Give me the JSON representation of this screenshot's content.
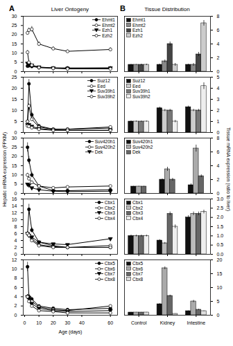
{
  "chart_data": [
    {
      "type": "line",
      "title": "Liver Ontogeny",
      "annotations": [
        "A"
      ],
      "x": [
        2,
        3,
        5,
        10,
        20,
        30,
        60
      ],
      "xlim": [
        -1,
        65
      ],
      "xticks": [
        0,
        10,
        20,
        30,
        40,
        60
      ],
      "ylim": [
        0,
        30
      ],
      "yticks": [
        0,
        5,
        10,
        15,
        20,
        25,
        30
      ],
      "legend": "upper right",
      "tick_labels": "y",
      "series": [
        {
          "name": "Ehmt1",
          "color": "#000000",
          "marker": "filled_circle",
          "values": [
            3.0,
            3.2,
            2.8,
            2.2,
            2.0,
            2.0,
            2.0
          ],
          "errors": [
            0.3,
            0.3,
            0.3,
            0.2,
            0.2,
            0.2,
            0.2
          ]
        },
        {
          "name": "Ehmt2",
          "color": "#000000",
          "marker": "open_circle",
          "values": [
            21.0,
            22.5,
            23.0,
            15.0,
            12.5,
            11.0,
            12.0
          ],
          "errors": [
            1.0,
            1.2,
            1.5,
            1.2,
            1.0,
            0.8,
            1.0
          ]
        },
        {
          "name": "Ezh1",
          "color": "#000000",
          "marker": "filled_triangle_down",
          "values": [
            4.5,
            4.0,
            3.5,
            2.5,
            2.0,
            1.8,
            2.0
          ],
          "errors": [
            0.5,
            0.4,
            0.3,
            0.2,
            0.2,
            0.2,
            0.2
          ]
        },
        {
          "name": "Ezh2",
          "color": "#000000",
          "marker": "open_circle",
          "values": [
            10.5,
            5.0,
            3.5,
            2.2,
            1.8,
            1.5,
            1.5
          ],
          "errors": [
            1.0,
            0.5,
            0.4,
            0.2,
            0.2,
            0.2,
            0.2
          ]
        }
      ]
    },
    {
      "type": "bar",
      "title": "Tissue Distribution",
      "annotations": [
        "B"
      ],
      "categories": [
        "Control",
        "Kidney",
        "Intestine"
      ],
      "ylim": [
        0,
        8
      ],
      "yticks": [
        0,
        2,
        4,
        6,
        8
      ],
      "legend": "upper left",
      "tick_labels": "y",
      "series": [
        {
          "name": "Ehmt1",
          "color": "#111111",
          "values": [
            1.0,
            1.0,
            1.0
          ],
          "errors": [
            0.05,
            0.1,
            0.1
          ]
        },
        {
          "name": "Ehmt2",
          "color": "#888888",
          "values": [
            1.0,
            1.5,
            1.0
          ],
          "errors": [
            0.05,
            0.2,
            0.2
          ]
        },
        {
          "name": "Ezh1",
          "color": "#444444",
          "values": [
            1.0,
            4.0,
            2.5
          ],
          "errors": [
            0.1,
            0.3,
            0.3
          ]
        },
        {
          "name": "Ezh2",
          "color": "#cccccc",
          "values": [
            1.0,
            1.0,
            7.0
          ],
          "errors": [
            0.1,
            0.2,
            0.4
          ]
        }
      ]
    },
    {
      "type": "line",
      "x": [
        2,
        3,
        5,
        10,
        20,
        30,
        60
      ],
      "xlim": [
        -1,
        65
      ],
      "xticks": [
        0,
        10,
        20,
        30,
        40,
        60
      ],
      "ylim": [
        0,
        25
      ],
      "yticks": [
        0,
        5,
        10,
        15,
        20,
        25
      ],
      "legend": "upper right",
      "tick_labels": "y",
      "series": [
        {
          "name": "Suz12",
          "color": "#000000",
          "marker": "filled_circle",
          "values": [
            5.0,
            22.0,
            8.0,
            3.0,
            1.5,
            1.5,
            2.0
          ],
          "errors": [
            0.5,
            2.0,
            1.0,
            0.3,
            0.2,
            0.2,
            0.2
          ]
        },
        {
          "name": "Eed",
          "color": "#000000",
          "marker": "open_circle",
          "values": [
            5.0,
            12.0,
            6.0,
            2.5,
            1.5,
            1.5,
            2.5
          ],
          "errors": [
            0.5,
            1.0,
            0.8,
            0.3,
            0.2,
            0.2,
            0.2
          ]
        },
        {
          "name": "Suv39h1",
          "color": "#000000",
          "marker": "filled_triangle_down",
          "values": [
            3.5,
            3.5,
            2.8,
            1.8,
            1.2,
            1.0,
            1.0
          ],
          "errors": [
            0.3,
            0.4,
            0.3,
            0.2,
            0.1,
            0.1,
            0.1
          ]
        },
        {
          "name": "Suv39h2",
          "color": "#000000",
          "marker": "open_circle",
          "values": [
            3.0,
            2.8,
            2.2,
            1.5,
            1.0,
            1.0,
            1.0
          ],
          "errors": [
            0.3,
            0.3,
            0.2,
            0.2,
            0.1,
            0.1,
            0.1
          ]
        }
      ]
    },
    {
      "type": "bar",
      "categories": [
        "Control",
        "Kidney",
        "Intestine"
      ],
      "ylim": [
        0,
        5
      ],
      "yticks": [
        0,
        1,
        2,
        3,
        4,
        5
      ],
      "legend": "upper left",
      "tick_labels": "y",
      "series": [
        {
          "name": "Suz12",
          "color": "#111111",
          "values": [
            1.0,
            2.2,
            2.3
          ],
          "errors": [
            0.05,
            0.1,
            0.1
          ]
        },
        {
          "name": "Eed",
          "color": "#cccccc",
          "values": [
            1.0,
            2.0,
            2.0
          ],
          "errors": [
            0.05,
            0.1,
            0.1
          ]
        },
        {
          "name": "Suv39h1",
          "color": "#777777",
          "values": [
            1.0,
            2.0,
            2.0
          ],
          "errors": [
            0.05,
            0.1,
            0.1
          ]
        },
        {
          "name": "Suv39h2",
          "color": "#eeeeee",
          "values": [
            1.0,
            1.0,
            4.2
          ],
          "errors": [
            0.05,
            0.1,
            0.3
          ]
        }
      ]
    },
    {
      "type": "line",
      "y_label": "Hepatic mRNA expression (FPKM)",
      "x": [
        2,
        3,
        5,
        10,
        20,
        30,
        60
      ],
      "xlim": [
        -1,
        65
      ],
      "xticks": [
        0,
        10,
        20,
        30,
        40,
        60
      ],
      "ylim": [
        0,
        30
      ],
      "yticks": [
        0,
        5,
        10,
        15,
        20,
        25,
        30
      ],
      "legend": "upper right",
      "tick_labels": "y",
      "series": [
        {
          "name": "Suv420h1",
          "color": "#000000",
          "marker": "filled_circle",
          "values": [
            25.0,
            18.0,
            10.0,
            4.0,
            1.5,
            1.5,
            2.0
          ],
          "errors": [
            2.5,
            2.0,
            1.5,
            0.5,
            0.2,
            0.2,
            0.2
          ]
        },
        {
          "name": "Suv420h2",
          "color": "#000000",
          "marker": "open_circle",
          "values": [
            10.0,
            8.0,
            6.0,
            4.0,
            3.0,
            3.5,
            4.0
          ],
          "errors": [
            1.0,
            1.0,
            0.8,
            0.4,
            0.2,
            0.3,
            0.3
          ]
        },
        {
          "name": "Dek",
          "color": "#000000",
          "marker": "filled_triangle_down",
          "values": [
            5.0,
            4.5,
            3.0,
            2.0,
            1.2,
            1.0,
            1.2
          ],
          "errors": [
            0.5,
            0.4,
            0.3,
            0.2,
            0.1,
            0.1,
            0.1
          ]
        }
      ]
    },
    {
      "type": "bar",
      "y_label": "Tissue mRNA expression (ratio to liver)",
      "categories": [
        "Control",
        "Kidney",
        "Intestine"
      ],
      "ylim": [
        0,
        8
      ],
      "yticks": [
        0,
        2,
        4,
        6,
        8
      ],
      "legend": "upper left",
      "tick_labels": "y",
      "series": [
        {
          "name": "Suv420h1",
          "color": "#111111",
          "values": [
            1.0,
            2.0,
            1.2
          ],
          "errors": [
            0.05,
            0.1,
            0.2
          ]
        },
        {
          "name": "Suv420h2",
          "color": "#aaaaaa",
          "values": [
            1.0,
            3.5,
            6.5
          ],
          "errors": [
            0.05,
            0.3,
            0.5
          ]
        },
        {
          "name": "Dek",
          "color": "#666666",
          "values": [
            1.0,
            2.0,
            2.5
          ],
          "errors": [
            0.05,
            0.2,
            0.2
          ]
        }
      ]
    },
    {
      "type": "line",
      "x": [
        2,
        3,
        5,
        10,
        20,
        30,
        60
      ],
      "xlim": [
        -1,
        65
      ],
      "xticks": [
        0,
        10,
        20,
        30,
        40,
        60
      ],
      "ylim": [
        0,
        16
      ],
      "yticks": [
        0,
        2,
        4,
        6,
        8,
        10,
        12,
        14,
        16
      ],
      "legend": "upper right",
      "tick_labels": "y",
      "series": [
        {
          "name": "Cbx1",
          "color": "#000000",
          "marker": "filled_circle",
          "values": [
            6.0,
            13.0,
            7.0,
            3.5,
            2.5,
            2.0,
            2.0
          ],
          "errors": [
            0.5,
            1.5,
            0.8,
            0.4,
            0.3,
            0.2,
            0.2
          ]
        },
        {
          "name": "Cbx2",
          "color": "#000000",
          "marker": "open_circle",
          "values": [
            6.0,
            5.5,
            4.5,
            2.8,
            2.2,
            2.0,
            2.5
          ],
          "errors": [
            0.5,
            0.5,
            0.4,
            0.3,
            0.2,
            0.2,
            0.2
          ]
        },
        {
          "name": "Cbx3",
          "color": "#000000",
          "marker": "filled_triangle_down",
          "values": [
            6.0,
            5.5,
            5.0,
            3.5,
            3.0,
            2.8,
            4.5
          ],
          "errors": [
            0.5,
            0.5,
            0.4,
            0.3,
            0.2,
            0.2,
            0.3
          ]
        },
        {
          "name": "Cbx4",
          "color": "#000000",
          "marker": "open_circle",
          "values": [
            6.0,
            5.5,
            4.0,
            2.5,
            2.0,
            2.0,
            2.0
          ],
          "errors": [
            0.5,
            0.5,
            0.4,
            0.3,
            0.2,
            0.2,
            0.2
          ]
        }
      ]
    },
    {
      "type": "bar",
      "categories": [
        "Control",
        "Kidney",
        "Intestine"
      ],
      "ylim": [
        0,
        3.0
      ],
      "yticks": [
        {
          "value": 0.0,
          "label": "0.0"
        },
        0.5,
        {
          "value": 1.0,
          "label": "1.0"
        },
        1.5,
        {
          "value": 2.0,
          "label": "2.0"
        },
        2.5,
        {
          "value": 3.0,
          "label": "3.0"
        }
      ],
      "legend": "upper left",
      "tick_labels": "y",
      "series": [
        {
          "name": "Cbx1",
          "color": "#111111",
          "values": [
            1.0,
            0.75,
            2.0
          ],
          "errors": [
            0.05,
            0.05,
            0.1
          ]
        },
        {
          "name": "Cbx2",
          "color": "#bbbbbb",
          "values": [
            1.0,
            0.6,
            2.2
          ],
          "errors": [
            0.05,
            0.05,
            0.1
          ]
        },
        {
          "name": "Cbx3",
          "color": "#666666",
          "values": [
            1.0,
            2.2,
            2.2
          ],
          "errors": [
            0.05,
            0.1,
            0.1
          ]
        },
        {
          "name": "Cbx4",
          "color": "#eeeeee",
          "values": [
            1.0,
            1.5,
            2.3
          ],
          "errors": [
            0.05,
            0.1,
            0.1
          ]
        }
      ]
    },
    {
      "type": "line",
      "x_label": "Age (days)",
      "x": [
        2,
        3,
        5,
        10,
        20,
        30,
        60
      ],
      "xlim": [
        -1,
        65
      ],
      "xticks": [
        0,
        10,
        20,
        30,
        40,
        60
      ],
      "ylim": [
        0,
        12
      ],
      "yticks": [
        0,
        2,
        4,
        6,
        8,
        10,
        12
      ],
      "legend": "upper right",
      "series": [
        {
          "name": "Cbx5",
          "color": "#000000",
          "marker": "filled_circle",
          "values": [
            10.5,
            4.0,
            3.5,
            2.0,
            1.5,
            1.2,
            1.5
          ],
          "errors": [
            1.0,
            0.5,
            0.4,
            0.2,
            0.2,
            0.2,
            0.2
          ]
        },
        {
          "name": "Cbx6",
          "color": "#000000",
          "marker": "open_circle",
          "values": [
            4.0,
            4.0,
            3.0,
            1.8,
            1.2,
            1.0,
            2.0
          ],
          "errors": [
            0.5,
            0.5,
            0.3,
            0.2,
            0.1,
            0.1,
            0.2
          ]
        },
        {
          "name": "Cbx7",
          "color": "#000000",
          "marker": "filled_triangle_down",
          "values": [
            4.0,
            3.8,
            2.5,
            1.5,
            1.0,
            0.8,
            1.0
          ],
          "errors": [
            0.5,
            0.4,
            0.3,
            0.2,
            0.1,
            0.1,
            0.1
          ]
        },
        {
          "name": "Cbx8",
          "color": "#000000",
          "marker": "open_circle",
          "values": [
            4.0,
            3.0,
            2.0,
            1.0,
            0.8,
            0.5,
            0.5
          ],
          "errors": [
            0.4,
            0.3,
            0.2,
            0.1,
            0.1,
            0.05,
            0.05
          ]
        }
      ]
    },
    {
      "type": "bar",
      "categories": [
        "Control",
        "Kidney",
        "Intestine"
      ],
      "ylim": [
        0,
        20
      ],
      "yticks": [
        0,
        5,
        10,
        15,
        20
      ],
      "legend": "upper left",
      "series": [
        {
          "name": "Cbx5",
          "color": "#111111",
          "values": [
            1.0,
            4.0,
            1.5
          ],
          "errors": [
            0.05,
            0.2,
            0.1
          ]
        },
        {
          "name": "Cbx6",
          "color": "#aaaaaa",
          "values": [
            1.0,
            17.0,
            5.0
          ],
          "errors": [
            0.05,
            0.5,
            0.4
          ]
        },
        {
          "name": "Cbx7",
          "color": "#666666",
          "values": [
            1.0,
            7.0,
            2.0
          ],
          "errors": [
            0.05,
            0.3,
            0.2
          ]
        },
        {
          "name": "Cbx8",
          "color": "#dddddd",
          "values": [
            1.0,
            0.5,
            1.5
          ],
          "errors": [
            0.05,
            0.05,
            0.1
          ]
        }
      ]
    }
  ]
}
